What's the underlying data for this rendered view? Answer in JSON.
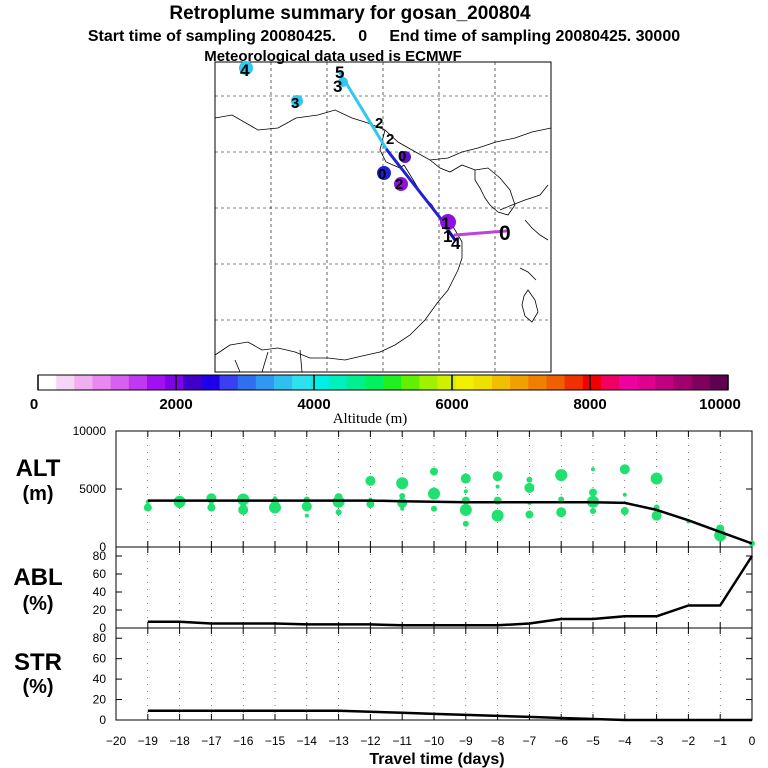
{
  "header": {
    "title": "Retroplume summary for gosan_200804",
    "sampling_line": "Start time of sampling 20080425.     0     End time of sampling 20080425. 30000",
    "met_line": "Meteorological data used is ECMWF"
  },
  "map": {
    "track_labels": [
      "4",
      "5",
      "3",
      "3",
      "2",
      "2",
      "0",
      "2",
      "0",
      "1",
      "1",
      "4",
      "0"
    ]
  },
  "colorbar": {
    "title": "Altitude (m)",
    "tick_labels": [
      "0",
      "2000",
      "4000",
      "6000",
      "8000",
      "10000"
    ],
    "range": [
      0,
      10000
    ],
    "colors": [
      "#ffffff",
      "#f7d5f7",
      "#f0b0f0",
      "#e888f0",
      "#d860f0",
      "#c038f0",
      "#a010f0",
      "#8000e8",
      "#4000c8",
      "#2000e8",
      "#3840f0",
      "#3070f0",
      "#3098f0",
      "#30c0f0",
      "#30e0f0",
      "#00f0e8",
      "#00f0c0",
      "#00f090",
      "#00f060",
      "#20f020",
      "#60f000",
      "#a0f000",
      "#d0f000",
      "#f0f000",
      "#f0e000",
      "#f0c000",
      "#f0a000",
      "#f08000",
      "#f06000",
      "#f03000",
      "#f00000",
      "#f00060",
      "#f000a0",
      "#e00090",
      "#c00080",
      "#a00070",
      "#800060",
      "#600050"
    ]
  },
  "chart_data": [
    {
      "type": "line",
      "name": "ALT",
      "ylabel": [
        "ALT",
        "(m)"
      ],
      "ylim": [
        0,
        10000
      ],
      "yticks": [
        "0",
        "5000",
        "10000"
      ],
      "xlim": [
        -20,
        0
      ],
      "x": [
        -19,
        -18,
        -17,
        -16,
        -15,
        -14,
        -13,
        -12,
        -11,
        -10,
        -9,
        -8,
        -7,
        -6,
        -5,
        -4,
        -3,
        -2,
        -1,
        0
      ],
      "values": [
        4000,
        4000,
        4000,
        4000,
        4000,
        4000,
        4000,
        4000,
        3950,
        3900,
        3850,
        3850,
        3850,
        3850,
        3850,
        3800,
        3200,
        2300,
        1300,
        300
      ],
      "scatter": [
        [
          -19,
          3900
        ],
        [
          -19,
          3400
        ],
        [
          -18,
          3900
        ],
        [
          -18,
          3600
        ],
        [
          -17,
          4200
        ],
        [
          -17,
          3800
        ],
        [
          -17,
          3400
        ],
        [
          -16,
          4100
        ],
        [
          -16,
          3700
        ],
        [
          -16,
          3200
        ],
        [
          -15,
          4200
        ],
        [
          -15,
          3900
        ],
        [
          -15,
          3400
        ],
        [
          -14,
          4100
        ],
        [
          -14,
          3500
        ],
        [
          -14,
          2700
        ],
        [
          -13,
          4300
        ],
        [
          -13,
          3900
        ],
        [
          -13,
          3000
        ],
        [
          -12,
          5700
        ],
        [
          -12,
          4100
        ],
        [
          -12,
          3700
        ],
        [
          -11,
          5500
        ],
        [
          -11,
          4400
        ],
        [
          -11,
          3800
        ],
        [
          -11,
          3300
        ],
        [
          -10,
          6500
        ],
        [
          -10,
          4600
        ],
        [
          -10,
          3300
        ],
        [
          -9,
          5900
        ],
        [
          -9,
          4800
        ],
        [
          -9,
          4000
        ],
        [
          -9,
          3200
        ],
        [
          -9,
          2000
        ],
        [
          -8,
          6100
        ],
        [
          -8,
          5200
        ],
        [
          -8,
          4000
        ],
        [
          -8,
          2700
        ],
        [
          -7,
          5800
        ],
        [
          -7,
          5100
        ],
        [
          -7,
          3800
        ],
        [
          -7,
          2800
        ],
        [
          -6,
          6200
        ],
        [
          -6,
          4100
        ],
        [
          -6,
          3000
        ],
        [
          -5,
          6700
        ],
        [
          -5,
          4700
        ],
        [
          -5,
          3900
        ],
        [
          -5,
          3100
        ],
        [
          -4,
          6700
        ],
        [
          -4,
          4500
        ],
        [
          -4,
          3100
        ],
        [
          -3,
          5900
        ],
        [
          -3,
          3400
        ],
        [
          -3,
          2700
        ],
        [
          -2,
          2200
        ],
        [
          -1,
          1600
        ],
        [
          -1,
          1000
        ],
        [
          0,
          300
        ]
      ]
    },
    {
      "type": "line",
      "name": "ABL",
      "ylabel": [
        "ABL",
        "(%)"
      ],
      "ylim": [
        0,
        90
      ],
      "yticks": [
        "0",
        "20",
        "40",
        "60",
        "80"
      ],
      "xlim": [
        -20,
        0
      ],
      "x": [
        -19,
        -18,
        -17,
        -16,
        -15,
        -14,
        -13,
        -12,
        -11,
        -10,
        -9,
        -8,
        -7,
        -6,
        -5,
        -4,
        -3,
        -2,
        -1,
        0
      ],
      "values": [
        7,
        7,
        5,
        5,
        5,
        4,
        4,
        4,
        3,
        3,
        3,
        3,
        5,
        10,
        10,
        13,
        13,
        25,
        25,
        80
      ]
    },
    {
      "type": "line",
      "name": "STR",
      "ylabel": [
        "STR",
        "(%)"
      ],
      "ylim": [
        0,
        90
      ],
      "yticks": [
        "0",
        "20",
        "40",
        "60",
        "80"
      ],
      "xlim": [
        -20,
        0
      ],
      "x": [
        -19,
        -18,
        -17,
        -16,
        -15,
        -14,
        -13,
        -12,
        -11,
        -10,
        -9,
        -8,
        -7,
        -6,
        -5,
        -4,
        -3,
        -2,
        -1,
        0
      ],
      "values": [
        9,
        9,
        9,
        9,
        9,
        9,
        9,
        8,
        7,
        6,
        5,
        4,
        3,
        2,
        1,
        0,
        0,
        0,
        0,
        0
      ],
      "xticks": [
        "−20",
        "−19",
        "−18",
        "−17",
        "−16",
        "−15",
        "−14",
        "−13",
        "−12",
        "−11",
        "−10",
        "−9",
        "−8",
        "−7",
        "−6",
        "−5",
        "−4",
        "−3",
        "−2",
        "−1",
        "0"
      ],
      "xlabel": "Travel time (days)"
    }
  ]
}
